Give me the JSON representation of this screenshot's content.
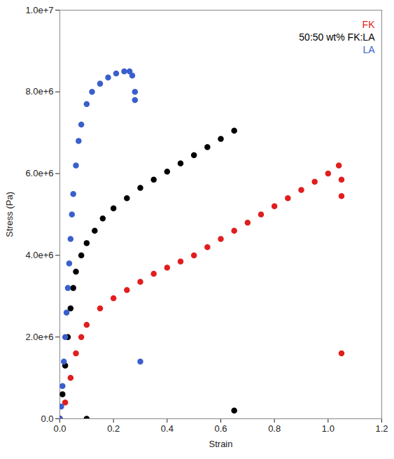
{
  "chart_data": {
    "type": "scatter",
    "x_label": "Strain",
    "y_label": "Stress (Pa)",
    "xlim": [
      0,
      1.2
    ],
    "ylim": [
      0,
      10000000
    ],
    "xticks": [
      {
        "value": 0,
        "label": "0.0"
      },
      {
        "value": 0.2,
        "label": "0.2"
      },
      {
        "value": 0.4,
        "label": "0.4"
      },
      {
        "value": 0.6,
        "label": "0.6"
      },
      {
        "value": 0.8,
        "label": "0.8"
      },
      {
        "value": 1.0,
        "label": "1.0"
      },
      {
        "value": 1.2,
        "label": "1.2"
      }
    ],
    "yticks": [
      {
        "value": 0,
        "label": "0.0"
      },
      {
        "value": 2000000,
        "label": "2.0e+6"
      },
      {
        "value": 4000000,
        "label": "4.0e+6"
      },
      {
        "value": 6000000,
        "label": "6.0e+6"
      },
      {
        "value": 8000000,
        "label": "8.0e+6"
      },
      {
        "value": 10000000,
        "label": "1.0e+7"
      }
    ],
    "grid": false,
    "legend": "top-right",
    "marker": "circle",
    "series": [
      {
        "name": "FK",
        "color": "#e01e1e",
        "x": [
          0,
          0.02,
          0.04,
          0.06,
          0.08,
          0.1,
          0.15,
          0.2,
          0.25,
          0.3,
          0.35,
          0.4,
          0.45,
          0.5,
          0.55,
          0.6,
          0.65,
          0.7,
          0.75,
          0.8,
          0.85,
          0.9,
          0.95,
          1.0,
          1.04,
          1.05,
          1.05,
          1.05
        ],
        "values": [
          0,
          400000,
          1000000,
          1600000,
          2000000,
          2300000,
          2700000,
          2950000,
          3150000,
          3350000,
          3550000,
          3700000,
          3850000,
          4000000,
          4200000,
          4400000,
          4600000,
          4800000,
          5000000,
          5200000,
          5400000,
          5600000,
          5800000,
          6000000,
          6200000,
          5850000,
          5450000,
          1600000
        ]
      },
      {
        "name": "50:50 wt% FK:LA",
        "color": "#000000",
        "x": [
          0,
          0.01,
          0.02,
          0.03,
          0.04,
          0.05,
          0.06,
          0.08,
          0.1,
          0.13,
          0.16,
          0.2,
          0.25,
          0.3,
          0.35,
          0.4,
          0.45,
          0.5,
          0.55,
          0.6,
          0.65,
          0.1,
          0.65
        ],
        "values": [
          0,
          600000,
          1300000,
          2000000,
          2700000,
          3200000,
          3600000,
          4000000,
          4300000,
          4600000,
          4900000,
          5150000,
          5400000,
          5650000,
          5850000,
          6050000,
          6250000,
          6450000,
          6650000,
          6850000,
          7050000,
          0,
          200000
        ]
      },
      {
        "name": "LA",
        "color": "#3a5fcd",
        "x": [
          0,
          0.005,
          0.01,
          0.015,
          0.02,
          0.025,
          0.03,
          0.035,
          0.04,
          0.045,
          0.05,
          0.06,
          0.07,
          0.08,
          0.1,
          0.12,
          0.15,
          0.18,
          0.21,
          0.24,
          0.26,
          0.27,
          0.28,
          0.28,
          0.3
        ],
        "values": [
          0,
          300000,
          800000,
          1400000,
          2000000,
          2600000,
          3200000,
          3800000,
          4400000,
          5000000,
          5500000,
          6200000,
          6800000,
          7200000,
          7700000,
          8000000,
          8200000,
          8350000,
          8450000,
          8500000,
          8500000,
          8400000,
          8000000,
          7800000,
          1400000
        ]
      }
    ]
  }
}
